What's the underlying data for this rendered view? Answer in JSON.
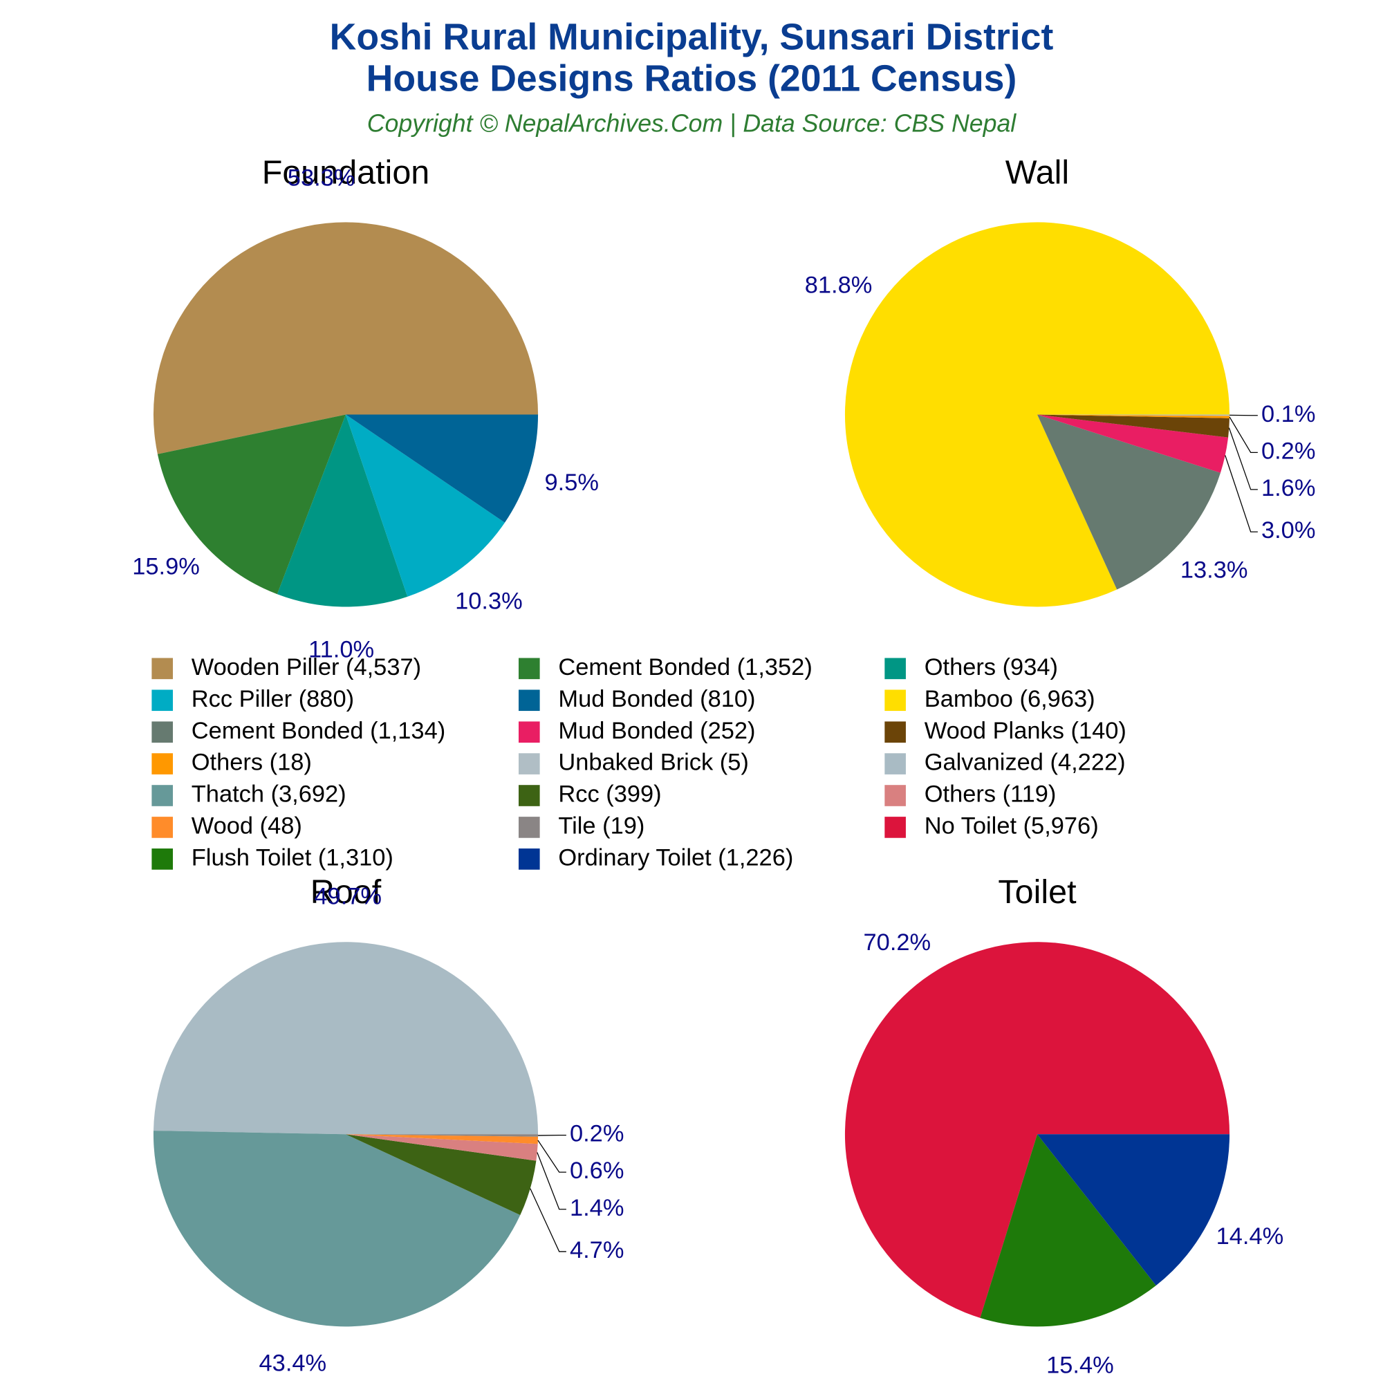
{
  "title": [
    "Koshi Rural Municipality, Sunsari District",
    "House Designs Ratios (2011 Census)"
  ],
  "subtitle": "Copyright © NepalArchives.Com | Data Source: CBS Nepal",
  "chart_data": [
    {
      "type": "pie",
      "title": "Foundation",
      "categories": [
        "Wooden Piller",
        "Cement Bonded",
        "Others",
        "Rcc Piller",
        "Mud Bonded"
      ],
      "values": [
        53.3,
        15.9,
        11.0,
        10.3,
        9.5
      ],
      "value_labels": [
        "53.3%",
        "15.9%",
        "11.0%",
        "10.3%",
        "9.5%"
      ],
      "legend_labels": [
        "Wooden Piller (4,537)",
        "Cement Bonded (1,352)",
        "Others (934)",
        "Rcc Piller (880)",
        "Mud Bonded (810)"
      ],
      "colors": [
        "#b38c50",
        "#2e8030",
        "#009684",
        "#00acc4",
        "#006496"
      ]
    },
    {
      "type": "pie",
      "title": "Wall",
      "categories": [
        "Bamboo",
        "Cement Bonded",
        "Mud Bonded",
        "Wood Planks",
        "Others",
        "Unbaked Brick"
      ],
      "values": [
        81.8,
        13.3,
        3.0,
        1.6,
        0.2,
        0.1
      ],
      "value_labels": [
        "81.8%",
        "13.3%",
        "3.0%",
        "1.6%",
        "0.2%",
        "0.1%"
      ],
      "legend_labels": [
        "Bamboo (6,963)",
        "Cement Bonded (1,134)",
        "Mud Bonded (252)",
        "Wood Planks (140)",
        "Others (18)",
        "Unbaked Brick (5)"
      ],
      "colors": [
        "#ffde00",
        "#667a70",
        "#e91e63",
        "#6b4408",
        "#ff9800",
        "#b0bec5"
      ]
    },
    {
      "type": "pie",
      "title": "Roof",
      "categories": [
        "Galvanized",
        "Thatch",
        "Rcc",
        "Others",
        "Wood",
        "Tile"
      ],
      "values": [
        49.7,
        43.4,
        4.7,
        1.4,
        0.6,
        0.2
      ],
      "value_labels": [
        "49.7%",
        "43.4%",
        "4.7%",
        "1.4%",
        "0.6%",
        "0.2%"
      ],
      "legend_labels": [
        "Galvanized (4,222)",
        "Thatch (3,692)",
        "Rcc (399)",
        "Others (119)",
        "Wood (48)",
        "Tile (19)"
      ],
      "colors": [
        "#a9bbc4",
        "#669999",
        "#3d6314",
        "#d98080",
        "#ff8c2a",
        "#8a8585"
      ]
    },
    {
      "type": "pie",
      "title": "Toilet",
      "categories": [
        "No Toilet",
        "Flush Toilet",
        "Ordinary Toilet"
      ],
      "values": [
        70.2,
        15.4,
        14.4
      ],
      "value_labels": [
        "70.2%",
        "15.4%",
        "14.4%"
      ],
      "legend_labels": [
        "No Toilet (5,976)",
        "Flush Toilet (1,310)",
        "Ordinary Toilet (1,226)"
      ],
      "colors": [
        "#dc143c",
        "#1e7a0a",
        "#003594"
      ]
    }
  ]
}
